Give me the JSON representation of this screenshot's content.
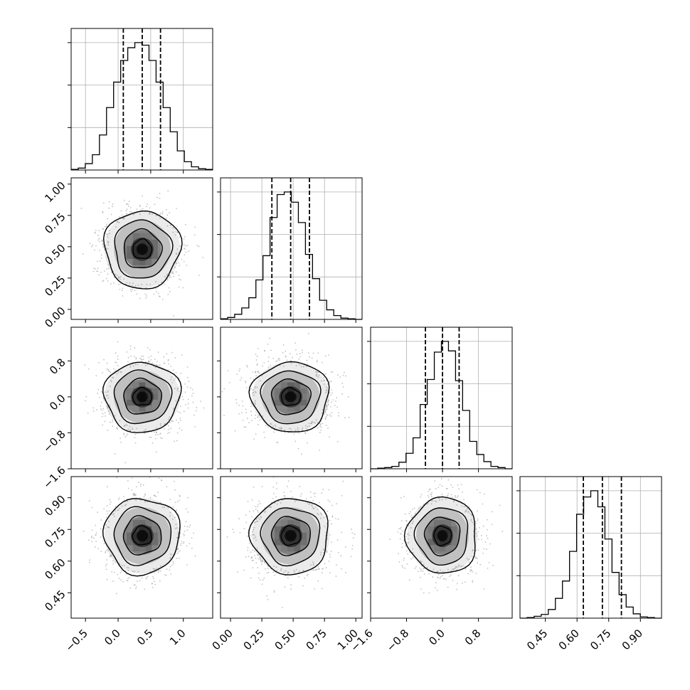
{
  "chart_data": {
    "type": "corner",
    "title": "",
    "grid": true,
    "colors": {
      "line": "#000000",
      "grid": "#b0b0b0",
      "scatter": "#a8a8a8",
      "background": "#ffffff"
    },
    "parameters": [
      {
        "index": 0,
        "mean": 0.37,
        "std": 0.29,
        "range": [
          -0.72,
          1.45
        ],
        "ticks": [
          -0.5,
          0.0,
          0.5,
          1.0
        ],
        "tick_labels": [
          "−0.5",
          "0.0",
          "0.5",
          "1.0"
        ],
        "quantiles": [
          0.08,
          0.37,
          0.65
        ]
      },
      {
        "index": 1,
        "mean": 0.48,
        "std": 0.155,
        "range": [
          -0.08,
          1.05
        ],
        "ticks": [
          0.0,
          0.25,
          0.5,
          0.75,
          1.0
        ],
        "tick_labels": [
          "0.00",
          "0.25",
          "0.50",
          "0.75",
          "1.00"
        ],
        "quantiles": [
          0.33,
          0.48,
          0.63
        ]
      },
      {
        "index": 2,
        "mean": 0.0,
        "std": 0.39,
        "range": [
          -1.6,
          1.55
        ],
        "ticks": [
          -1.6,
          -0.8,
          0.0,
          0.8
        ],
        "tick_labels": [
          "−1.6",
          "−0.8",
          "0.0",
          "0.8"
        ],
        "quantiles": [
          -0.38,
          0.0,
          0.37
        ]
      },
      {
        "index": 3,
        "mean": 0.72,
        "std": 0.09,
        "range": [
          0.33,
          1.0
        ],
        "ticks": [
          0.45,
          0.6,
          0.75,
          0.9
        ],
        "tick_labels": [
          "0.45",
          "0.60",
          "0.75",
          "0.90"
        ],
        "quantiles": [
          0.63,
          0.72,
          0.81
        ]
      }
    ],
    "histograms": [
      {
        "param": 0,
        "bins": 20,
        "counts": [
          1,
          3,
          10,
          24,
          55,
          98,
          138,
          172,
          192,
          200,
          196,
          172,
          138,
          98,
          60,
          30,
          13,
          5,
          2,
          1
        ]
      },
      {
        "param": 1,
        "bins": 20,
        "counts": [
          1,
          3,
          8,
          18,
          34,
          62,
          100,
          160,
          196,
          200,
          184,
          152,
          102,
          64,
          30,
          15,
          6,
          2,
          1,
          0
        ]
      },
      {
        "param": 2,
        "bins": 20,
        "counts": [
          0,
          1,
          2,
          4,
          11,
          26,
          52,
          108,
          150,
          196,
          214,
          198,
          148,
          98,
          46,
          24,
          12,
          4,
          2,
          0
        ]
      },
      {
        "param": 3,
        "bins": 20,
        "counts": [
          0,
          1,
          3,
          6,
          14,
          32,
          60,
          108,
          168,
          196,
          206,
          180,
          128,
          74,
          38,
          18,
          7,
          2,
          1,
          0
        ]
      }
    ],
    "pairs": [
      {
        "x": 0,
        "y": 1
      },
      {
        "x": 0,
        "y": 2
      },
      {
        "x": 1,
        "y": 2
      },
      {
        "x": 0,
        "y": 3
      },
      {
        "x": 1,
        "y": 3
      },
      {
        "x": 2,
        "y": 3
      }
    ],
    "contour_levels_sigma": [
      0.5,
      1.0,
      1.5,
      2.0
    ]
  }
}
